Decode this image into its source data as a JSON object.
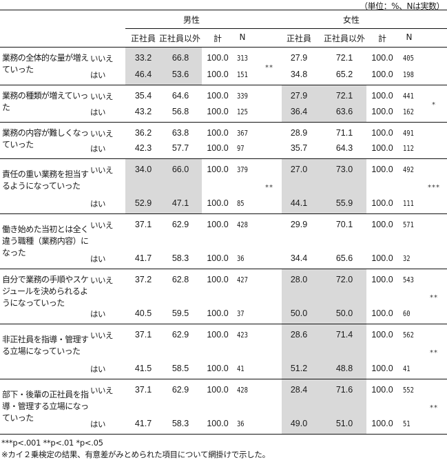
{
  "unit_note": "（単位：%、Nは実数）",
  "header": {
    "male": "男性",
    "female": "女性",
    "cols": [
      "正社員",
      "正社員以外",
      "計",
      "N"
    ]
  },
  "answers": {
    "no": "いいえ",
    "yes": "はい"
  },
  "shade_color": "#d9d9d9",
  "rows": [
    {
      "label": "業務の全体的な量が増えていった",
      "male": {
        "no": [
          "33.2",
          "66.8",
          "100.0",
          "313"
        ],
        "yes": [
          "46.4",
          "53.6",
          "100.0",
          "151"
        ],
        "sig": "**",
        "shaded": true
      },
      "female": {
        "no": [
          "27.9",
          "72.1",
          "100.0",
          "405"
        ],
        "yes": [
          "34.8",
          "65.2",
          "100.0",
          "198"
        ],
        "sig": "",
        "shaded": false
      }
    },
    {
      "label": "業務の種類が増えていった",
      "male": {
        "no": [
          "35.4",
          "64.6",
          "100.0",
          "339"
        ],
        "yes": [
          "43.2",
          "56.8",
          "100.0",
          "125"
        ],
        "sig": "",
        "shaded": false
      },
      "female": {
        "no": [
          "27.9",
          "72.1",
          "100.0",
          "441"
        ],
        "yes": [
          "36.4",
          "63.6",
          "100.0",
          "162"
        ],
        "sig": "*",
        "shaded": true
      }
    },
    {
      "label": "業務の内容が難しくなっていった",
      "male": {
        "no": [
          "36.2",
          "63.8",
          "100.0",
          "367"
        ],
        "yes": [
          "42.3",
          "57.7",
          "100.0",
          "97"
        ],
        "sig": "",
        "shaded": false
      },
      "female": {
        "no": [
          "28.9",
          "71.1",
          "100.0",
          "491"
        ],
        "yes": [
          "35.7",
          "64.3",
          "100.0",
          "112"
        ],
        "sig": "",
        "shaded": false
      }
    },
    {
      "label": "責任の重い業務を担当するようになっていった",
      "male": {
        "no": [
          "34.0",
          "66.0",
          "100.0",
          "379"
        ],
        "yes": [
          "52.9",
          "47.1",
          "100.0",
          "85"
        ],
        "sig": "**",
        "shaded": true
      },
      "female": {
        "no": [
          "27.0",
          "73.0",
          "100.0",
          "492"
        ],
        "yes": [
          "44.1",
          "55.9",
          "100.0",
          "111"
        ],
        "sig": "***",
        "shaded": true
      }
    },
    {
      "label": "働き始めた当初とは全く違う職種（業務内容）になった",
      "male": {
        "no": [
          "37.1",
          "62.9",
          "100.0",
          "428"
        ],
        "yes": [
          "41.7",
          "58.3",
          "100.0",
          "36"
        ],
        "sig": "",
        "shaded": false
      },
      "female": {
        "no": [
          "29.9",
          "70.1",
          "100.0",
          "571"
        ],
        "yes": [
          "34.4",
          "65.6",
          "100.0",
          "32"
        ],
        "sig": "",
        "shaded": false
      }
    },
    {
      "label": "自分で業務の手順やスケジュールを決められるようになっていった",
      "male": {
        "no": [
          "37.2",
          "62.8",
          "100.0",
          "427"
        ],
        "yes": [
          "40.5",
          "59.5",
          "100.0",
          "37"
        ],
        "sig": "",
        "shaded": false
      },
      "female": {
        "no": [
          "28.0",
          "72.0",
          "100.0",
          "543"
        ],
        "yes": [
          "50.0",
          "50.0",
          "100.0",
          "60"
        ],
        "sig": "**",
        "shaded": true
      }
    },
    {
      "label": "非正社員を指導・管理する立場になっていった",
      "male": {
        "no": [
          "37.1",
          "62.9",
          "100.0",
          "423"
        ],
        "yes": [
          "41.5",
          "58.5",
          "100.0",
          "41"
        ],
        "sig": "",
        "shaded": false
      },
      "female": {
        "no": [
          "28.6",
          "71.4",
          "100.0",
          "562"
        ],
        "yes": [
          "51.2",
          "48.8",
          "100.0",
          "41"
        ],
        "sig": "**",
        "shaded": true
      }
    },
    {
      "label": "部下・後輩の正社員を指導・管理する立場になっていった",
      "male": {
        "no": [
          "37.1",
          "62.9",
          "100.0",
          "428"
        ],
        "yes": [
          "41.7",
          "58.3",
          "100.0",
          "36"
        ],
        "sig": "",
        "shaded": false
      },
      "female": {
        "no": [
          "28.4",
          "71.6",
          "100.0",
          "552"
        ],
        "yes": [
          "49.0",
          "51.0",
          "100.0",
          "51"
        ],
        "sig": "**",
        "shaded": true
      }
    }
  ],
  "footer": {
    "significance": "***p<.001 **p<.01 *p<.05",
    "note": "※カイ２乗検定の結果、有意差がみとめられた項目について網掛けで示した。"
  }
}
